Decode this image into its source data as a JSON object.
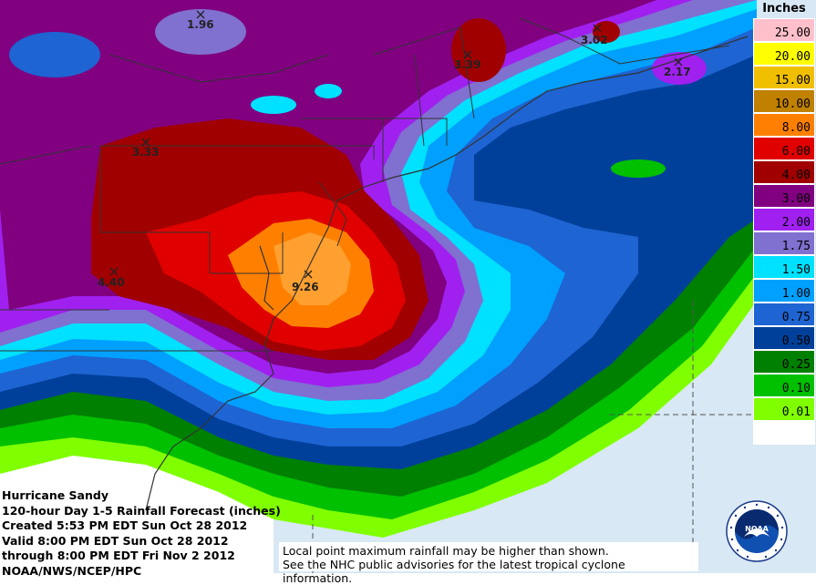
{
  "legend": {
    "title": "Inches",
    "items": [
      {
        "label": "25.00",
        "color": "#ffc0cb"
      },
      {
        "label": "20.00",
        "color": "#ffff00"
      },
      {
        "label": "15.00",
        "color": "#f0c000"
      },
      {
        "label": "10.00",
        "color": "#c08000"
      },
      {
        "label": "8.00",
        "color": "#ff8000"
      },
      {
        "label": "6.00",
        "color": "#e00000"
      },
      {
        "label": "4.00",
        "color": "#a00000"
      },
      {
        "label": "3.00",
        "color": "#800080"
      },
      {
        "label": "2.00",
        "color": "#a020f0"
      },
      {
        "label": "1.75",
        "color": "#8070d0"
      },
      {
        "label": "1.50",
        "color": "#00e0ff"
      },
      {
        "label": "1.00",
        "color": "#00a0ff"
      },
      {
        "label": "0.75",
        "color": "#1e64d2"
      },
      {
        "label": "0.50",
        "color": "#00409a"
      },
      {
        "label": "0.25",
        "color": "#008000"
      },
      {
        "label": "0.10",
        "color": "#00c000"
      },
      {
        "label": "0.01",
        "color": "#80ff00"
      },
      {
        "label": "",
        "color": "#ffffff"
      }
    ]
  },
  "maxima": [
    {
      "label": "1.96"
    },
    {
      "label": "3.39"
    },
    {
      "label": "3.02"
    },
    {
      "label": "2.17"
    },
    {
      "label": "3.33"
    },
    {
      "label": "4.40"
    },
    {
      "label": "9.26"
    }
  ],
  "info": {
    "line1": "Hurricane Sandy",
    "line2": "120-hour Day 1-5 Rainfall Forecast (inches)",
    "line3": "Created 5:53 PM EDT Sun Oct 28 2012",
    "line4": "Valid 8:00 PM EDT Sun Oct 28 2012",
    "line5": "through 8:00 PM EDT Fri Nov 2 2012",
    "line6": "NOAA/NWS/NCEP/HPC"
  },
  "note": {
    "line1": "Local point maximum rainfall may be higher than shown.",
    "line2": "See the NHC public advisories for the latest tropical cyclone information."
  },
  "logo": {
    "text": "NOAA"
  }
}
